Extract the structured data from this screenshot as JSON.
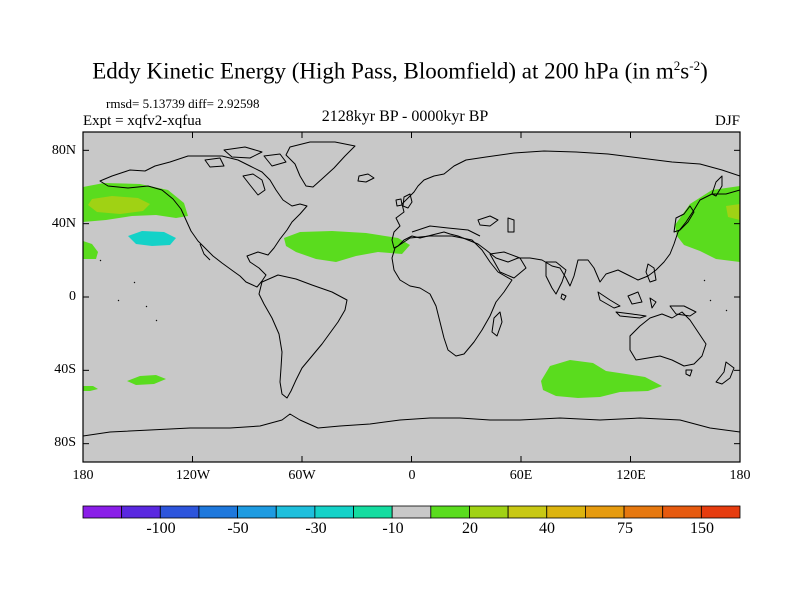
{
  "figure": {
    "title": "Eddy Kinetic Energy (High Pass, Bloomfield) at 200 hPa (in m",
    "units_exp1": "2",
    "units_mid": "s",
    "units_exp2": "-2",
    "units_close": ")",
    "stats": "rmsd= 5.13739  diff= 2.92598",
    "experiment": "Expt = xqfv2-xqfua",
    "period": "2128kyr BP - 0000kyr BP",
    "season": "DJF"
  },
  "chart_data": {
    "type": "filled contour map",
    "projection": "cylindrical equidistant",
    "lon_range": [
      -180,
      180
    ],
    "lat_range": [
      -90,
      90
    ],
    "lat_ticks": [
      "80N",
      "40N",
      "0",
      "40S",
      "80S"
    ],
    "lat_tick_values": [
      80,
      40,
      0,
      -40,
      -80
    ],
    "lon_ticks": [
      "180",
      "120W",
      "60W",
      "0",
      "60E",
      "120E",
      "180"
    ],
    "lon_tick_values": [
      -180,
      -120,
      -60,
      0,
      60,
      120,
      180
    ],
    "colorbar": {
      "labels": [
        "-100",
        "-50",
        "-30",
        "-10",
        "20",
        "40",
        "75",
        "150"
      ],
      "colors": [
        "#8a1ee8",
        "#5a28e0",
        "#2d55dc",
        "#1e78dc",
        "#1e9be1",
        "#1ebfdc",
        "#14d2c8",
        "#14dca0",
        "#c8c8c8",
        "#5adc1e",
        "#a0d214",
        "#c8c814",
        "#dcb40f",
        "#e69b0f",
        "#e6780f",
        "#e65a0f",
        "#e63c0f"
      ]
    },
    "regions": [
      {
        "level": "10 to 20",
        "color": "#5adc1e",
        "location": "North Pacific / Alaska, 40N-60N"
      },
      {
        "level": "20 to 30",
        "color": "#a0d214",
        "location": "Gulf of Alaska core, ~47N"
      },
      {
        "level": "10 to 20",
        "color": "#5adc1e",
        "location": "Subtropical central Atlantic to North Africa, ~30N"
      },
      {
        "level": "10 to 20",
        "color": "#5adc1e",
        "location": "NW Pacific east of Japan, 25N-55N"
      },
      {
        "level": "20 to 30",
        "color": "#a0d214",
        "location": "NW Pacific core, ~45N"
      },
      {
        "level": "10 to 20",
        "color": "#5adc1e",
        "location": "Southern Indian Ocean, 35S-50S"
      },
      {
        "level": "10 to 20",
        "color": "#5adc1e",
        "location": "South Pacific patch, ~45S 130W"
      },
      {
        "level": "-20 to -10",
        "color": "#14d2c8",
        "location": "Subtropical east Pacific, ~30N 135W"
      }
    ]
  }
}
